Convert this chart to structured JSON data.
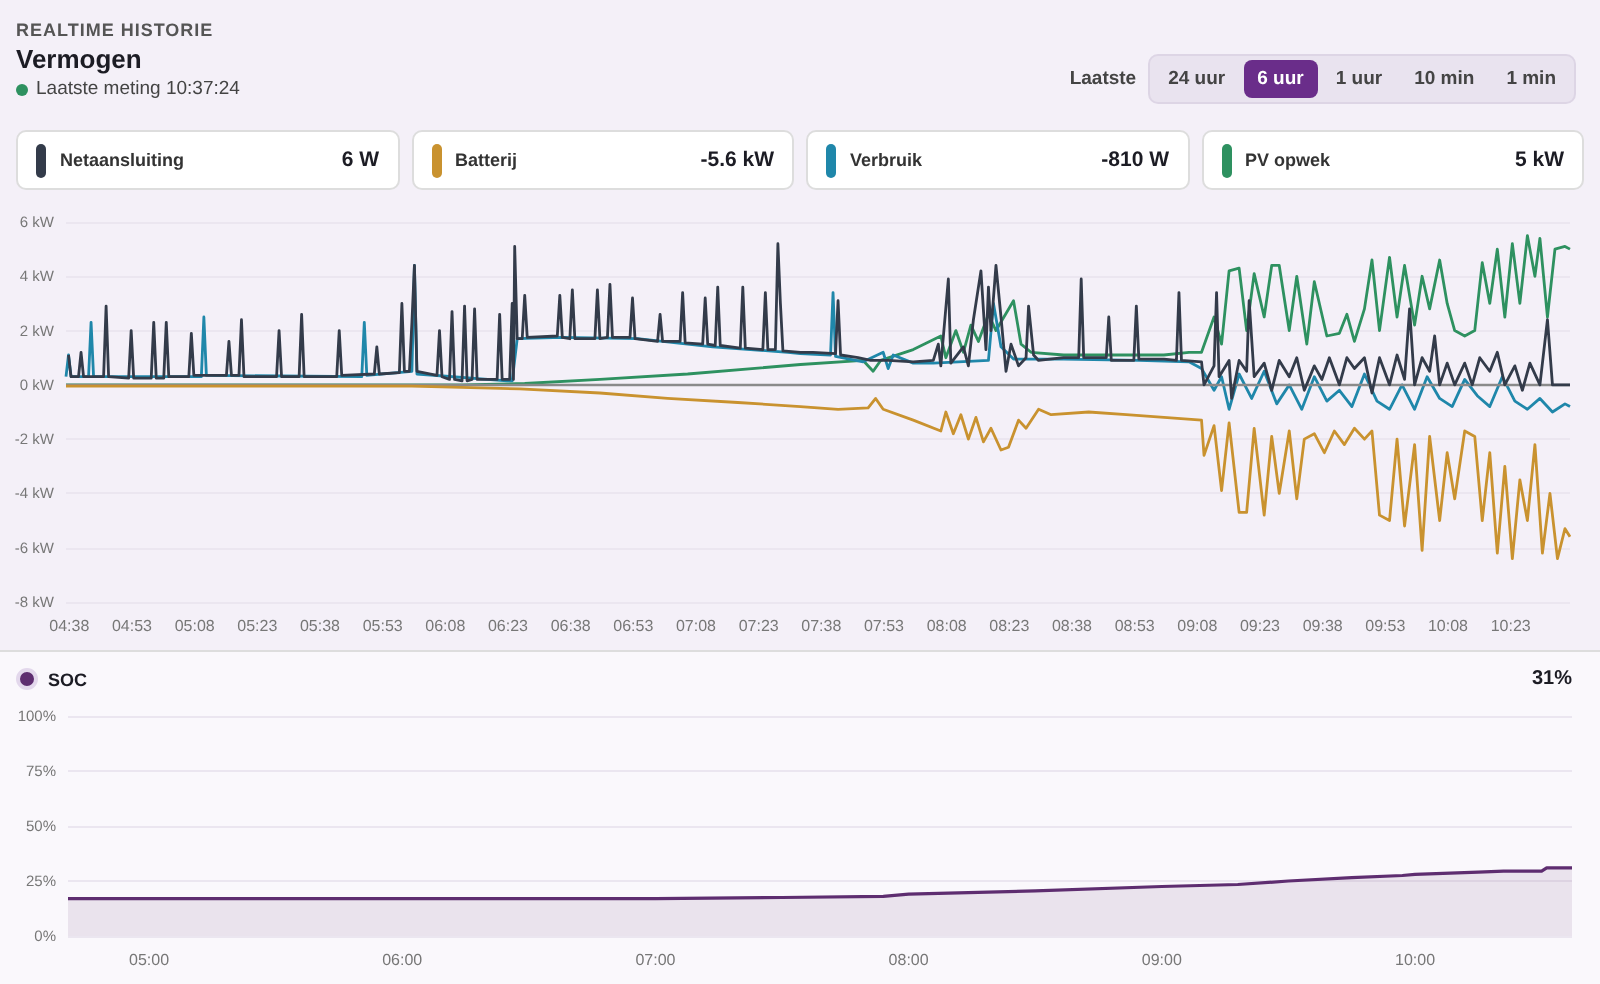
{
  "chart_data": [
    {
      "type": "line",
      "title": "Vermogen",
      "subtitle": "Laatste meting 10:37:24",
      "annotations": [
        "REALTIME HISTORIE",
        "Laatste",
        "24 uur",
        "6 uur",
        "1 uur",
        "10 min",
        "1 min",
        "6 W",
        "-5.6 kW",
        "-810 W",
        "5 kW"
      ],
      "legend": "top",
      "grid": "y",
      "marker": "none",
      "xlim": [
        4.62,
        10.62
      ],
      "xticks": [
        {
          "value": 4.6333,
          "label": "04:38"
        },
        {
          "value": 4.8833,
          "label": "04:53"
        },
        {
          "value": 5.1333,
          "label": "05:08"
        },
        {
          "value": 5.3833,
          "label": "05:23"
        },
        {
          "value": 5.6333,
          "label": "05:38"
        },
        {
          "value": 5.8833,
          "label": "05:53"
        },
        {
          "value": 6.1333,
          "label": "06:08"
        },
        {
          "value": 6.3833,
          "label": "06:23"
        },
        {
          "value": 6.6333,
          "label": "06:38"
        },
        {
          "value": 6.8833,
          "label": "06:53"
        },
        {
          "value": 7.1333,
          "label": "07:08"
        },
        {
          "value": 7.3833,
          "label": "07:23"
        },
        {
          "value": 7.6333,
          "label": "07:38"
        },
        {
          "value": 7.8833,
          "label": "07:53"
        },
        {
          "value": 8.1333,
          "label": "08:08"
        },
        {
          "value": 8.3833,
          "label": "08:23"
        },
        {
          "value": 8.6333,
          "label": "08:38"
        },
        {
          "value": 8.8833,
          "label": "08:53"
        },
        {
          "value": 9.1333,
          "label": "09:08"
        },
        {
          "value": 9.3833,
          "label": "09:23"
        },
        {
          "value": 9.6333,
          "label": "09:38"
        },
        {
          "value": 9.8833,
          "label": "09:53"
        },
        {
          "value": 10.1333,
          "label": "10:08"
        },
        {
          "value": 10.3833,
          "label": "10:23"
        }
      ],
      "ylim": [
        -8,
        6
      ],
      "yticks": [
        {
          "value": -8,
          "label": "-8 kW"
        },
        {
          "value": -6,
          "label": "-6 kW"
        },
        {
          "value": -4,
          "label": "-4 kW"
        },
        {
          "value": -2,
          "label": "-2 kW"
        },
        {
          "value": 0,
          "label": "0 kW"
        },
        {
          "value": 2,
          "label": "2 kW"
        },
        {
          "value": 4,
          "label": "4 kW"
        },
        {
          "value": 6,
          "label": "6 kW"
        }
      ],
      "ref_lines": [
        {
          "axis": "y",
          "value": 0,
          "color": "#8a8a8a"
        }
      ],
      "series": [
        {
          "name": "Netaansluiting",
          "color": "#333b4a",
          "x": [
            4.63,
            4.64,
            4.67,
            4.68,
            4.69,
            4.77,
            4.78,
            4.79,
            4.87,
            4.88,
            4.89,
            4.96,
            4.97,
            4.98,
            5.01,
            5.02,
            5.03,
            5.11,
            5.12,
            5.13,
            5.26,
            5.27,
            5.28,
            5.31,
            5.32,
            5.33,
            5.46,
            5.47,
            5.48,
            5.55,
            5.56,
            5.57,
            5.7,
            5.71,
            5.72,
            5.85,
            5.86,
            5.87,
            5.95,
            5.96,
            5.97,
            5.99,
            6.0,
            6.01,
            6.02,
            6.1,
            6.11,
            6.12,
            6.15,
            6.16,
            6.17,
            6.2,
            6.21,
            6.22,
            6.24,
            6.25,
            6.26,
            6.34,
            6.35,
            6.36,
            6.39,
            6.4,
            6.405,
            6.41,
            6.42,
            6.44,
            6.45,
            6.46,
            6.58,
            6.59,
            6.6,
            6.63,
            6.64,
            6.65,
            6.73,
            6.74,
            6.75,
            6.78,
            6.79,
            6.8,
            6.87,
            6.88,
            6.89,
            6.98,
            6.99,
            7.0,
            7.07,
            7.08,
            7.09,
            7.16,
            7.17,
            7.18,
            7.21,
            7.22,
            7.23,
            7.31,
            7.32,
            7.33,
            7.4,
            7.41,
            7.42,
            7.45,
            7.46,
            7.47,
            7.48,
            7.55,
            7.6,
            7.69,
            7.7,
            7.71,
            7.78,
            7.83,
            7.9,
            8.0,
            8.08,
            8.1,
            8.11,
            8.14,
            8.15,
            8.2,
            8.22,
            8.24,
            8.27,
            8.29,
            8.3,
            8.31,
            8.33,
            8.35,
            8.37,
            8.39,
            8.42,
            8.45,
            8.46,
            8.48,
            8.5,
            8.6,
            8.66,
            8.67,
            8.68,
            8.77,
            8.78,
            8.79,
            8.88,
            8.89,
            8.9,
            9.0,
            9.05,
            9.06,
            9.07,
            9.15,
            9.16,
            9.2,
            9.21,
            9.22,
            9.26,
            9.27,
            9.3,
            9.33,
            9.34,
            9.36,
            9.4,
            9.43,
            9.46,
            9.5,
            9.53,
            9.56,
            9.6,
            9.63,
            9.66,
            9.7,
            9.73,
            9.76,
            9.8,
            9.83,
            9.86,
            9.9,
            9.93,
            9.96,
            9.98,
            10.0,
            10.03,
            10.06,
            10.08,
            10.1,
            10.13,
            10.16,
            10.2,
            10.23,
            10.26,
            10.3,
            10.33,
            10.36,
            10.4,
            10.43,
            10.46,
            10.5,
            10.53,
            10.55,
            10.6,
            10.62
          ],
          "values": [
            1.1,
            0.3,
            0.3,
            1.2,
            0.3,
            0.3,
            2.9,
            0.3,
            0.25,
            2.0,
            0.25,
            0.25,
            2.3,
            0.25,
            0.25,
            2.3,
            0.3,
            0.3,
            1.9,
            0.35,
            0.35,
            1.6,
            0.35,
            0.35,
            2.4,
            0.3,
            0.3,
            2.0,
            0.3,
            0.3,
            2.6,
            0.3,
            0.3,
            2.0,
            0.35,
            0.4,
            1.4,
            0.4,
            0.45,
            3.0,
            0.5,
            0.5,
            2.3,
            4.4,
            0.5,
            0.35,
            2.0,
            0.3,
            0.2,
            2.7,
            0.2,
            0.15,
            2.9,
            0.15,
            0.2,
            2.8,
            0.2,
            0.2,
            2.6,
            0.2,
            0.2,
            3.0,
            0.2,
            5.1,
            1.7,
            1.7,
            3.3,
            1.75,
            1.8,
            3.3,
            1.75,
            1.7,
            3.5,
            1.7,
            1.7,
            3.5,
            1.7,
            1.75,
            3.7,
            1.75,
            1.75,
            3.2,
            1.7,
            1.6,
            2.6,
            1.6,
            1.6,
            3.4,
            1.55,
            1.5,
            3.2,
            1.5,
            1.45,
            3.6,
            1.45,
            1.35,
            3.6,
            1.35,
            1.3,
            3.4,
            1.3,
            1.3,
            5.2,
            3.0,
            1.25,
            1.2,
            1.2,
            1.15,
            3.1,
            1.1,
            1.0,
            0.9,
            0.9,
            0.85,
            0.9,
            1.5,
            0.7,
            3.9,
            0.8,
            1.4,
            0.7,
            2.4,
            4.2,
            1.3,
            3.6,
            2.0,
            4.4,
            2.5,
            0.5,
            1.5,
            0.7,
            1.0,
            2.9,
            1.1,
            0.9,
            1.0,
            1.0,
            3.9,
            1.0,
            1.0,
            2.5,
            0.9,
            0.9,
            2.9,
            0.95,
            0.95,
            0.9,
            3.4,
            0.9,
            0.85,
            0.0,
            0.7,
            3.4,
            0.3,
            0.9,
            -0.5,
            0.9,
            0.5,
            3.1,
            0.3,
            0.8,
            -0.2,
            0.9,
            0.3,
            1.0,
            -0.2,
            0.7,
            0.2,
            1.0,
            0.0,
            1.0,
            0.6,
            1.0,
            -0.3,
            1.0,
            0.0,
            1.1,
            0.2,
            2.8,
            0.0,
            1.0,
            0.5,
            1.8,
            0.0,
            0.8,
            0.0,
            0.8,
            0.0,
            1.0,
            0.5,
            1.2,
            0.0,
            0.7,
            -0.2,
            0.8,
            0.0,
            2.4,
            0.0,
            0.0,
            0.0
          ]
        },
        {
          "name": "Batterij",
          "color": "#c9922f",
          "x": [
            4.62,
            6.0,
            6.43,
            6.75,
            7.02,
            7.3,
            7.55,
            7.7,
            7.82,
            7.85,
            7.88,
            8.0,
            8.11,
            8.13,
            8.16,
            8.19,
            8.22,
            8.25,
            8.28,
            8.31,
            8.35,
            8.38,
            8.42,
            8.45,
            8.5,
            8.55,
            8.7,
            8.85,
            9.0,
            9.15,
            9.16,
            9.2,
            9.23,
            9.26,
            9.3,
            9.33,
            9.36,
            9.4,
            9.43,
            9.46,
            9.5,
            9.53,
            9.56,
            9.6,
            9.64,
            9.68,
            9.72,
            9.76,
            9.8,
            9.83,
            9.86,
            9.9,
            9.93,
            9.96,
            10.0,
            10.03,
            10.06,
            10.1,
            10.13,
            10.16,
            10.2,
            10.24,
            10.27,
            10.3,
            10.33,
            10.36,
            10.39,
            10.42,
            10.45,
            10.48,
            10.51,
            10.54,
            10.57,
            10.6,
            10.62
          ],
          "values": [
            -0.05,
            -0.05,
            -0.15,
            -0.3,
            -0.5,
            -0.65,
            -0.8,
            -0.9,
            -0.85,
            -0.5,
            -0.9,
            -1.3,
            -1.7,
            -1.0,
            -1.8,
            -1.1,
            -2.0,
            -1.2,
            -2.1,
            -1.6,
            -2.4,
            -2.3,
            -1.3,
            -1.6,
            -0.9,
            -1.1,
            -1.0,
            -1.1,
            -1.2,
            -1.3,
            -2.6,
            -1.5,
            -3.9,
            -1.4,
            -4.7,
            -4.7,
            -1.6,
            -4.8,
            -1.9,
            -4.0,
            -1.7,
            -4.2,
            -2.0,
            -1.8,
            -2.5,
            -1.7,
            -2.2,
            -1.6,
            -2.0,
            -1.7,
            -4.8,
            -5.0,
            -2.0,
            -5.2,
            -2.2,
            -6.1,
            -1.9,
            -5.0,
            -2.5,
            -4.2,
            -1.7,
            -1.9,
            -5.0,
            -2.5,
            -6.2,
            -3.0,
            -6.4,
            -3.5,
            -5.0,
            -2.2,
            -6.2,
            -4.0,
            -6.4,
            -5.3,
            -5.6
          ]
        },
        {
          "name": "Verbruik",
          "color": "#1f87aa",
          "x": [
            4.62,
            4.63,
            4.64,
            4.71,
            4.72,
            4.73,
            5.16,
            5.17,
            5.18,
            5.8,
            5.81,
            5.82,
            6.0,
            6.01,
            6.02,
            6.38,
            6.4,
            6.42,
            6.6,
            6.9,
            7.2,
            7.5,
            7.55,
            7.67,
            7.68,
            7.69,
            7.8,
            7.88,
            7.9,
            7.92,
            8.0,
            8.08,
            8.3,
            8.32,
            8.35,
            8.4,
            8.6,
            8.9,
            9.1,
            9.15,
            9.2,
            9.23,
            9.26,
            9.3,
            9.35,
            9.4,
            9.45,
            9.5,
            9.55,
            9.6,
            9.65,
            9.7,
            9.75,
            9.8,
            9.85,
            9.9,
            9.95,
            10.0,
            10.05,
            10.1,
            10.15,
            10.2,
            10.25,
            10.3,
            10.35,
            10.4,
            10.45,
            10.5,
            10.55,
            10.6,
            10.62
          ],
          "values": [
            0.3,
            1.1,
            0.3,
            0.3,
            2.3,
            0.3,
            0.3,
            2.5,
            0.35,
            0.3,
            2.3,
            0.35,
            0.5,
            4.4,
            0.4,
            0.15,
            0.15,
            1.7,
            1.75,
            1.7,
            1.4,
            1.2,
            1.15,
            1.1,
            3.4,
            1.05,
            0.85,
            1.2,
            0.6,
            1.1,
            0.8,
            0.8,
            0.9,
            3.0,
            1.4,
            0.95,
            0.95,
            0.9,
            0.85,
            0.6,
            -0.2,
            0.3,
            -0.9,
            0.4,
            -0.5,
            0.5,
            -0.7,
            0.0,
            -0.9,
            0.3,
            -0.6,
            -0.2,
            -0.8,
            0.4,
            -0.6,
            -0.9,
            0.0,
            -0.9,
            0.3,
            -0.5,
            -0.8,
            0.2,
            -0.4,
            -0.8,
            0.3,
            -0.6,
            -0.9,
            -0.5,
            -1.0,
            -0.7,
            -0.8
          ]
        },
        {
          "name": "PV opwek",
          "color": "#2e9160",
          "x": [
            4.62,
            6.2,
            6.45,
            6.75,
            7.1,
            7.55,
            7.8,
            7.84,
            7.87,
            8.0,
            8.11,
            8.13,
            8.17,
            8.2,
            8.23,
            8.26,
            8.3,
            8.33,
            8.4,
            8.43,
            8.47,
            8.6,
            8.8,
            9.0,
            9.1,
            9.15,
            9.2,
            9.23,
            9.26,
            9.3,
            9.33,
            9.36,
            9.4,
            9.43,
            9.46,
            9.5,
            9.53,
            9.57,
            9.6,
            9.65,
            9.7,
            9.73,
            9.76,
            9.8,
            9.83,
            9.86,
            9.9,
            9.93,
            9.96,
            10.0,
            10.03,
            10.06,
            10.1,
            10.13,
            10.16,
            10.2,
            10.24,
            10.27,
            10.3,
            10.33,
            10.36,
            10.39,
            10.42,
            10.45,
            10.48,
            10.5,
            10.53,
            10.56,
            10.6,
            10.62
          ],
          "values": [
            0,
            0,
            0.05,
            0.2,
            0.4,
            0.75,
            0.9,
            0.5,
            0.9,
            1.3,
            1.8,
            1.0,
            2.0,
            1.2,
            2.2,
            1.6,
            2.6,
            2.0,
            3.1,
            1.5,
            1.2,
            1.1,
            1.1,
            1.1,
            1.2,
            1.2,
            2.5,
            1.5,
            4.2,
            4.3,
            2.0,
            4.1,
            2.5,
            4.4,
            4.4,
            2.0,
            4.0,
            1.5,
            3.8,
            1.8,
            1.9,
            2.6,
            1.6,
            2.8,
            4.6,
            2.0,
            4.7,
            2.5,
            4.4,
            2.2,
            4.0,
            2.8,
            4.6,
            3.0,
            2.0,
            1.8,
            2.0,
            4.5,
            3.0,
            5.0,
            2.5,
            5.2,
            3.0,
            5.5,
            4.0,
            5.4,
            2.5,
            5.0,
            5.1,
            5.0
          ]
        }
      ]
    },
    {
      "type": "area",
      "annotations": [
        "31%"
      ],
      "legend": "top left",
      "grid": "y",
      "marker": "none",
      "xlim": [
        4.68,
        10.62
      ],
      "xticks": [
        {
          "value": 5,
          "label": "05:00"
        },
        {
          "value": 6,
          "label": "06:00"
        },
        {
          "value": 7,
          "label": "07:00"
        },
        {
          "value": 8,
          "label": "08:00"
        },
        {
          "value": 9,
          "label": "09:00"
        },
        {
          "value": 10,
          "label": "10:00"
        }
      ],
      "ylim": [
        0,
        100
      ],
      "yticks": [
        {
          "value": 0,
          "label": "0%"
        },
        {
          "value": 25,
          "label": "25%"
        },
        {
          "value": 50,
          "label": "50%"
        },
        {
          "value": 75,
          "label": "75%"
        },
        {
          "value": 100,
          "label": "100%"
        }
      ],
      "series": [
        {
          "name": "SOC",
          "color": "#5e2d70",
          "x": [
            4.68,
            7.0,
            7.5,
            7.9,
            8.0,
            8.5,
            9.0,
            9.3,
            9.5,
            9.75,
            9.95,
            10.0,
            10.25,
            10.35,
            10.5,
            10.52,
            10.62
          ],
          "values": [
            17,
            17,
            17.5,
            18,
            19,
            20.5,
            22.5,
            23.4,
            25,
            26.5,
            27.5,
            28,
            29,
            29.5,
            29.5,
            31,
            31
          ]
        }
      ]
    }
  ]
}
